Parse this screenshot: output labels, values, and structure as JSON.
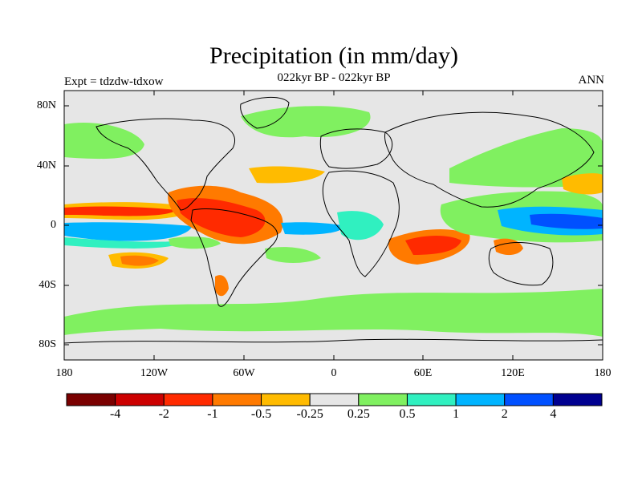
{
  "map": {
    "title": "Precipitation (in mm/day)",
    "subtitle": "022kyr BP - 022kyr BP",
    "left_label": "Expt = tdzdw-tdxow",
    "right_label": "ANN",
    "lat_ticks": [
      "80N",
      "40N",
      "0",
      "40S",
      "80S"
    ],
    "lon_ticks": [
      "180",
      "120W",
      "60W",
      "0",
      "60E",
      "120E",
      "180"
    ]
  },
  "colorbar": {
    "colors": [
      "#7a0000",
      "#cc0000",
      "#ff2a00",
      "#ff7a00",
      "#ffbb00",
      "#e6e6e6",
      "#80f060",
      "#30f0c0",
      "#00b4ff",
      "#0050ff",
      "#000090"
    ],
    "labels": [
      "-4",
      "-2",
      "-1",
      "-0.5",
      "-0.25",
      "0.25",
      "0.5",
      "1",
      "2",
      "4"
    ]
  }
}
